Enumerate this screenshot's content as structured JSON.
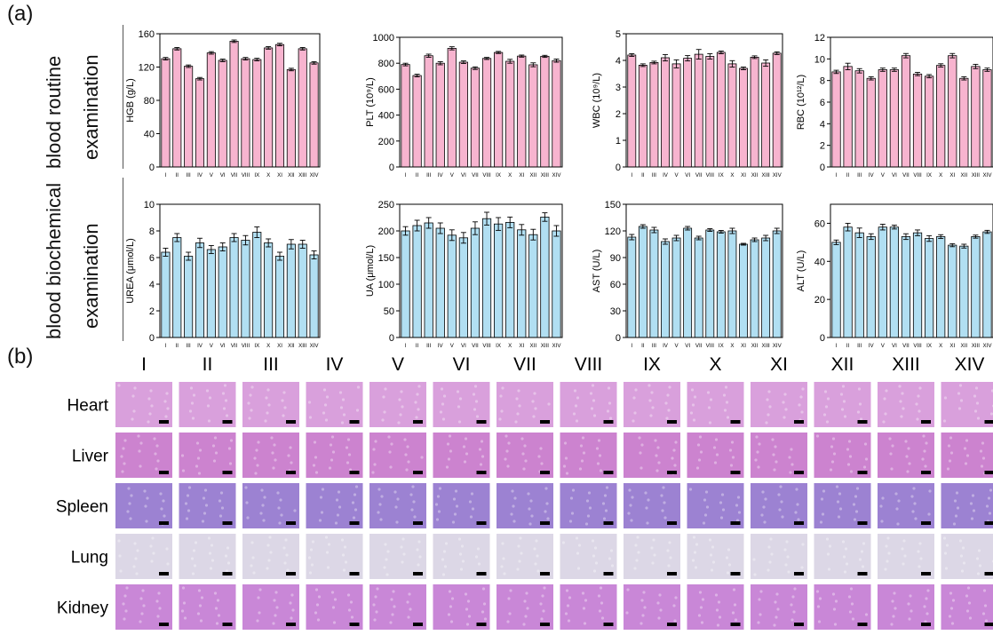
{
  "panel_labels": {
    "a": "(a)",
    "b": "(b)"
  },
  "row_labels": {
    "routine_1": "blood routine",
    "routine_2": "examination",
    "biochem_1": "blood biochemical",
    "biochem_2": "examination"
  },
  "colors": {
    "routine_bar": "#f7b4cf",
    "biochem_bar": "#b1dff2",
    "bar_edge": "#000000"
  },
  "groups": [
    "I",
    "II",
    "III",
    "IV",
    "V",
    "VI",
    "VII",
    "VIII",
    "IX",
    "X",
    "XI",
    "XII",
    "XIII",
    "XIV"
  ],
  "chart_data": [
    {
      "type": "bar",
      "ylabel": "HGB (g/L)",
      "ylim": [
        0,
        160
      ],
      "yticks": [
        0,
        40,
        80,
        120,
        160
      ],
      "categories": [
        "I",
        "II",
        "III",
        "IV",
        "V",
        "VI",
        "VII",
        "VIII",
        "IX",
        "X",
        "XI",
        "XII",
        "XIII",
        "XIV"
      ],
      "values": [
        130,
        142,
        121,
        106,
        137,
        128,
        151,
        130,
        129,
        143,
        147,
        117,
        142,
        125
      ],
      "errors": [
        1.5,
        1.5,
        1.5,
        1.5,
        1.5,
        1.5,
        1.5,
        1.5,
        1.5,
        1.5,
        1.5,
        1.5,
        1.5,
        1.5
      ]
    },
    {
      "type": "bar",
      "ylabel": "PLT (10⁹/L)",
      "ylim": [
        0,
        1000
      ],
      "yticks": [
        0,
        200,
        400,
        600,
        800,
        1000
      ],
      "categories": [
        "I",
        "II",
        "III",
        "IV",
        "V",
        "VI",
        "VII",
        "VIII",
        "IX",
        "X",
        "XI",
        "XII",
        "XIII",
        "XIV"
      ],
      "values": [
        790,
        705,
        858,
        800,
        915,
        808,
        762,
        837,
        883,
        815,
        855,
        788,
        853,
        820
      ],
      "errors": [
        10,
        10,
        12,
        12,
        12,
        10,
        10,
        8,
        8,
        15,
        8,
        15,
        8,
        12
      ]
    },
    {
      "type": "bar",
      "ylabel": "WBC (10⁹/L)",
      "ylim": [
        0,
        5
      ],
      "yticks": [
        0,
        1,
        2,
        3,
        4,
        5
      ],
      "categories": [
        "I",
        "II",
        "III",
        "IV",
        "V",
        "VI",
        "VII",
        "VIII",
        "IX",
        "X",
        "XI",
        "XII",
        "XIII",
        "XIV"
      ],
      "values": [
        4.2,
        3.82,
        3.92,
        4.1,
        3.87,
        4.08,
        4.23,
        4.15,
        4.3,
        3.87,
        3.7,
        4.12,
        3.9,
        4.27
      ],
      "errors": [
        0.05,
        0.05,
        0.05,
        0.12,
        0.15,
        0.1,
        0.18,
        0.1,
        0.05,
        0.12,
        0.05,
        0.05,
        0.12,
        0.05
      ]
    },
    {
      "type": "bar",
      "ylabel": "RBC (10¹²/L)",
      "ylim": [
        0,
        12
      ],
      "yticks": [
        0,
        2,
        4,
        6,
        8,
        10,
        12
      ],
      "categories": [
        "I",
        "II",
        "III",
        "IV",
        "V",
        "VI",
        "VII",
        "VIII",
        "IX",
        "X",
        "XI",
        "XII",
        "XIII",
        "XIV"
      ],
      "values": [
        8.8,
        9.3,
        8.9,
        8.2,
        9.0,
        9.0,
        10.3,
        8.6,
        8.4,
        9.4,
        10.3,
        8.2,
        9.3,
        9.0
      ],
      "errors": [
        0.15,
        0.3,
        0.2,
        0.15,
        0.15,
        0.15,
        0.2,
        0.15,
        0.15,
        0.15,
        0.2,
        0.15,
        0.2,
        0.15
      ]
    },
    {
      "type": "bar",
      "ylabel": "UREA (μmol/L)",
      "ylim": [
        0,
        10
      ],
      "yticks": [
        0,
        2,
        4,
        6,
        8,
        10
      ],
      "categories": [
        "I",
        "II",
        "III",
        "IV",
        "V",
        "VI",
        "VII",
        "VIII",
        "IX",
        "X",
        "XI",
        "XII",
        "XIII",
        "XIV"
      ],
      "values": [
        6.4,
        7.5,
        6.1,
        7.1,
        6.6,
        6.8,
        7.5,
        7.3,
        7.9,
        7.1,
        6.1,
        7.0,
        7.0,
        6.2
      ],
      "errors": [
        0.3,
        0.3,
        0.3,
        0.35,
        0.3,
        0.3,
        0.3,
        0.35,
        0.4,
        0.3,
        0.3,
        0.35,
        0.3,
        0.3
      ]
    },
    {
      "type": "bar",
      "ylabel": "UA (μmol/L)",
      "ylim": [
        0,
        250
      ],
      "yticks": [
        0,
        50,
        100,
        150,
        200,
        250
      ],
      "categories": [
        "I",
        "II",
        "III",
        "IV",
        "V",
        "VI",
        "VII",
        "VIII",
        "IX",
        "X",
        "XI",
        "XII",
        "XIII",
        "XIV"
      ],
      "values": [
        200,
        210,
        215,
        205,
        192,
        187,
        205,
        223,
        213,
        216,
        202,
        193,
        226,
        200
      ],
      "errors": [
        8,
        10,
        10,
        10,
        10,
        10,
        12,
        12,
        12,
        10,
        10,
        10,
        8,
        10
      ]
    },
    {
      "type": "bar",
      "ylabel": "AST (U/L)",
      "ylim": [
        0,
        150
      ],
      "yticks": [
        0,
        30,
        60,
        90,
        120,
        150
      ],
      "categories": [
        "I",
        "II",
        "III",
        "IV",
        "V",
        "VI",
        "VII",
        "VIII",
        "IX",
        "X",
        "XI",
        "XII",
        "XIII",
        "XIV"
      ],
      "values": [
        113,
        125,
        121,
        108,
        112,
        123,
        112,
        121,
        119,
        120,
        105,
        110,
        112,
        120
      ],
      "errors": [
        3,
        2,
        3,
        3,
        3,
        2,
        2,
        1.5,
        1.5,
        3,
        1,
        2,
        3,
        3
      ]
    },
    {
      "type": "bar",
      "ylabel": "ALT (U/L)",
      "ylim": [
        0,
        70
      ],
      "yticks": [
        0,
        20,
        40,
        60
      ],
      "categories": [
        "I",
        "II",
        "III",
        "IV",
        "V",
        "VI",
        "VII",
        "VIII",
        "IX",
        "X",
        "XI",
        "XII",
        "XIII",
        "XIV"
      ],
      "values": [
        50,
        58,
        55,
        53,
        58,
        58,
        53,
        55,
        52,
        53,
        48.5,
        48,
        53,
        55.5
      ],
      "errors": [
        1.2,
        2,
        2.5,
        1.5,
        1.5,
        1,
        1.5,
        1.5,
        1.5,
        1,
        0.8,
        1,
        0.8,
        0.8
      ]
    }
  ],
  "histology": {
    "columns": [
      "I",
      "II",
      "III",
      "IV",
      "V",
      "VI",
      "VII",
      "VIII",
      "IX",
      "X",
      "XI",
      "XII",
      "XIII",
      "XIV"
    ],
    "rows": [
      {
        "label": "Heart",
        "tint": "#d9a0dc"
      },
      {
        "label": "Liver",
        "tint": "#cc83cf"
      },
      {
        "label": "Spleen",
        "tint": "#9c82d2"
      },
      {
        "label": "Lung",
        "tint": "#dcd7e6"
      },
      {
        "label": "Kidney",
        "tint": "#c987d7"
      }
    ]
  }
}
